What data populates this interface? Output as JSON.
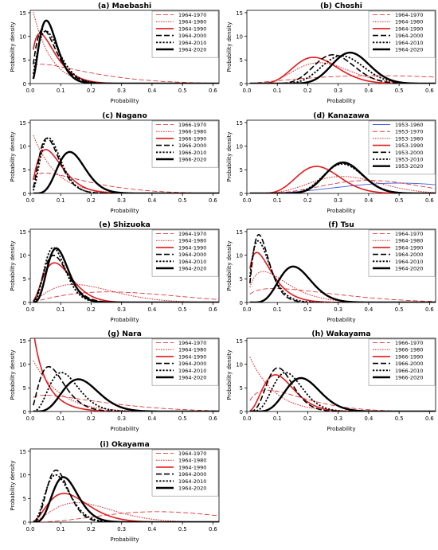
{
  "styles": [
    {
      "color": "#e31a1c",
      "dash": "6,3",
      "width": 0.8
    },
    {
      "color": "#e31a1c",
      "dash": "1.5,1.5",
      "width": 1.0
    },
    {
      "color": "#e31a1c",
      "dash": "",
      "width": 1.6
    },
    {
      "color": "#000000",
      "dash": "7,3",
      "width": 1.6
    },
    {
      "color": "#000000",
      "dash": "2.2,2",
      "width": 1.8
    },
    {
      "color": "#000000",
      "dash": "",
      "width": 2.4
    }
  ],
  "blue_style": {
    "color": "#3b5bdb",
    "dash": "",
    "width": 0.9
  },
  "chart_data": [
    {
      "type": "line",
      "title": "(a) Maebashi",
      "ylabel": "Probability density",
      "xlabel": "Probability",
      "xlim": [
        0,
        0.62
      ],
      "ylim": [
        0,
        15.5
      ],
      "xticks": [
        0.0,
        0.1,
        0.2,
        0.3,
        0.4,
        0.5,
        0.6
      ],
      "yticks": [
        0,
        5,
        10,
        15
      ],
      "series": [
        {
          "name": "1964-1970",
          "dist": {
            "a": 1.2,
            "b": 6.0
          }
        },
        {
          "name": "1964-1980",
          "dist": {
            "a": 1.0,
            "b": 18.0
          }
        },
        {
          "name": "1964-1990",
          "dist": {
            "a": 1.8,
            "b": 25.0
          }
        },
        {
          "name": "1964-2000",
          "dist": {
            "a": 2.5,
            "b": 35.0
          }
        },
        {
          "name": "1964-2010",
          "dist": {
            "a": 3.0,
            "b": 38.0
          }
        },
        {
          "name": "1964-2020",
          "dist": {
            "a": 4.0,
            "b": 55.0
          }
        }
      ]
    },
    {
      "type": "line",
      "title": "(b) Choshi",
      "ylabel": "Probability density",
      "xlabel": "Probability",
      "xlim": [
        0,
        0.62
      ],
      "ylim": [
        0,
        15.5
      ],
      "xticks": [
        0.0,
        0.1,
        0.2,
        0.3,
        0.4,
        0.5,
        0.6
      ],
      "yticks": [
        0,
        5,
        10,
        15
      ],
      "series": [
        {
          "name": "1964-1970",
          "dist": {
            "a": 2.2,
            "b": 2.6
          }
        },
        {
          "name": "1964-1980",
          "dist": {
            "a": 6.0,
            "b": 17.0
          }
        },
        {
          "name": "1964-1990",
          "dist": {
            "a": 8.0,
            "b": 26.0
          }
        },
        {
          "name": "1964-2000",
          "dist": {
            "a": 14.0,
            "b": 34.0
          }
        },
        {
          "name": "1964-2010",
          "dist": {
            "a": 15.0,
            "b": 32.0
          }
        },
        {
          "name": "1964-2020",
          "dist": {
            "a": 21.0,
            "b": 40.0
          }
        }
      ]
    },
    {
      "type": "line",
      "title": "(c) Nagano",
      "ylabel": "Probability density",
      "xlabel": "Probability",
      "xlim": [
        0,
        0.62
      ],
      "ylim": [
        0,
        15.5
      ],
      "xticks": [
        0.0,
        0.1,
        0.2,
        0.3,
        0.4,
        0.5,
        0.6
      ],
      "yticks": [
        0,
        5,
        10,
        15
      ],
      "series": [
        {
          "name": "1966-1970",
          "dist": {
            "a": 1.3,
            "b": 7.0
          }
        },
        {
          "name": "1966-1980",
          "dist": {
            "a": 1.0,
            "b": 14.0
          }
        },
        {
          "name": "1966-1990",
          "dist": {
            "a": 2.4,
            "b": 27.0
          }
        },
        {
          "name": "1966-2000",
          "dist": {
            "a": 3.5,
            "b": 44.0
          }
        },
        {
          "name": "1966-2010",
          "dist": {
            "a": 4.0,
            "b": 48.0
          }
        },
        {
          "name": "1966-2020",
          "dist": {
            "a": 8.0,
            "b": 48.0
          }
        }
      ]
    },
    {
      "type": "line",
      "title": "(d) Kanazawa",
      "ylabel": "Probability density",
      "xlabel": "Probability",
      "xlim": [
        0,
        0.62
      ],
      "ylim": [
        0,
        15.5
      ],
      "xticks": [
        0.0,
        0.1,
        0.2,
        0.3,
        0.4,
        0.5,
        0.6
      ],
      "yticks": [
        0,
        5,
        10,
        15
      ],
      "series": [
        {
          "name": "1953-1960",
          "dist": {
            "a": 4.0,
            "b": 4.0
          },
          "blue": true
        },
        {
          "name": "1953-1970",
          "dist": {
            "a": 5.0,
            "b": 7.0
          }
        },
        {
          "name": "1953-1980",
          "dist": {
            "a": 6.0,
            "b": 12.0
          }
        },
        {
          "name": "1953-1990",
          "dist": {
            "a": 9.0,
            "b": 28.0
          }
        },
        {
          "name": "1953-2000",
          "dist": {
            "a": 18.0,
            "b": 38.0
          }
        },
        {
          "name": "1953-2010",
          "dist": {
            "a": 17.0,
            "b": 36.0
          }
        },
        {
          "name": "1953-2020",
          "dist": {
            "a": 19.0,
            "b": 40.0
          }
        }
      ]
    },
    {
      "type": "line",
      "title": "(e) Shizuoka",
      "ylabel": "Probability density",
      "xlabel": "Probability",
      "xlim": [
        0,
        0.62
      ],
      "ylim": [
        0,
        15.5
      ],
      "xticks": [
        0.0,
        0.1,
        0.2,
        0.3,
        0.4,
        0.5,
        0.6
      ],
      "yticks": [
        0,
        5,
        10,
        15
      ],
      "series": [
        {
          "name": "1964-1970",
          "dist": {
            "a": 2.2,
            "b": 4.5
          }
        },
        {
          "name": "1964-1980",
          "dist": {
            "a": 2.5,
            "b": 10.0
          }
        },
        {
          "name": "1964-1990",
          "dist": {
            "a": 3.6,
            "b": 31.0
          }
        },
        {
          "name": "1964-2000",
          "dist": {
            "a": 4.4,
            "b": 42.0
          }
        },
        {
          "name": "1964-2010",
          "dist": {
            "a": 5.5,
            "b": 56.0
          }
        },
        {
          "name": "1964-2020",
          "dist": {
            "a": 6.5,
            "b": 60.0
          }
        }
      ]
    },
    {
      "type": "line",
      "title": "(f) Tsu",
      "ylabel": "Probability density",
      "xlabel": "Probability",
      "xlim": [
        0,
        0.62
      ],
      "ylim": [
        0,
        15.5
      ],
      "xticks": [
        0.0,
        0.1,
        0.2,
        0.3,
        0.4,
        0.5,
        0.6
      ],
      "yticks": [
        0,
        5,
        10,
        15
      ],
      "series": [
        {
          "name": "1964-1970",
          "dist": {
            "a": 1.4,
            "b": 5.0
          }
        },
        {
          "name": "1964-1980",
          "dist": {
            "a": 1.8,
            "b": 15.0
          }
        },
        {
          "name": "1964-1990",
          "dist": {
            "a": 1.8,
            "b": 25.0
          }
        },
        {
          "name": "1964-2000",
          "dist": {
            "a": 3.0,
            "b": 50.0
          }
        },
        {
          "name": "1964-2010",
          "dist": {
            "a": 2.5,
            "b": 40.0
          }
        },
        {
          "name": "1964-2020",
          "dist": {
            "a": 8.0,
            "b": 40.0
          }
        }
      ]
    },
    {
      "type": "line",
      "title": "(g) Nara",
      "ylabel": "Probability density",
      "xlabel": "Probability",
      "xlim": [
        0,
        0.62
      ],
      "ylim": [
        0,
        15.5
      ],
      "xticks": [
        0.0,
        0.1,
        0.2,
        0.3,
        0.4,
        0.5,
        0.6
      ],
      "yticks": [
        0,
        5,
        10,
        15
      ],
      "series": [
        {
          "name": "1964-1970",
          "dist": {
            "a": 1.2,
            "b": 5.0
          }
        },
        {
          "name": "1964-1980",
          "dist": {
            "a": 1.0,
            "b": 12.0
          }
        },
        {
          "name": "1964-1990",
          "dist": {
            "a": 0.85,
            "b": 18.0
          }
        },
        {
          "name": "1964-2000",
          "dist": {
            "a": 3.0,
            "b": 32.0
          }
        },
        {
          "name": "1964-2010",
          "dist": {
            "a": 5.0,
            "b": 36.0
          }
        },
        {
          "name": "1964-2020",
          "dist": {
            "a": 7.0,
            "b": 33.0
          }
        }
      ]
    },
    {
      "type": "line",
      "title": "(h) Wakayama",
      "ylabel": "Probability density",
      "xlabel": "Probability",
      "xlim": [
        0,
        0.62
      ],
      "ylim": [
        0,
        15.5
      ],
      "xticks": [
        0.0,
        0.1,
        0.2,
        0.3,
        0.4,
        0.5,
        0.6
      ],
      "yticks": [
        0,
        5,
        10,
        15
      ],
      "series": [
        {
          "name": "1966-1970",
          "dist": {
            "a": 1.6,
            "b": 9.0
          }
        },
        {
          "name": "1966-1980",
          "dist": {
            "a": 1.0,
            "b": 13.0
          }
        },
        {
          "name": "1966-1990",
          "dist": {
            "a": 4.0,
            "b": 30.0
          }
        },
        {
          "name": "1966-2000",
          "dist": {
            "a": 6.0,
            "b": 45.0
          }
        },
        {
          "name": "1966-2010",
          "dist": {
            "a": 7.0,
            "b": 42.0
          }
        },
        {
          "name": "1966-2020",
          "dist": {
            "a": 9.0,
            "b": 38.0
          }
        }
      ]
    },
    {
      "type": "line",
      "title": "(i) Okayama",
      "ylabel": "Probability density",
      "xlabel": "Probability",
      "xlim": [
        0,
        0.62
      ],
      "ylim": [
        0,
        15.5
      ],
      "xticks": [
        0.0,
        0.1,
        0.2,
        0.3,
        0.4,
        0.5,
        0.6
      ],
      "yticks": [
        0,
        5,
        10,
        15
      ],
      "series": [
        {
          "name": "1964-1970",
          "dist": {
            "a": 3.5,
            "b": 4.5
          }
        },
        {
          "name": "1964-1980",
          "dist": {
            "a": 3.0,
            "b": 12.0
          }
        },
        {
          "name": "1964-1990",
          "dist": {
            "a": 3.5,
            "b": 21.0
          }
        },
        {
          "name": "1964-2000",
          "dist": {
            "a": 6.0,
            "b": 55.0
          }
        },
        {
          "name": "1964-2010",
          "dist": {
            "a": 5.0,
            "b": 45.0
          }
        },
        {
          "name": "1964-2020",
          "dist": {
            "a": 7.0,
            "b": 50.0
          }
        }
      ]
    }
  ]
}
